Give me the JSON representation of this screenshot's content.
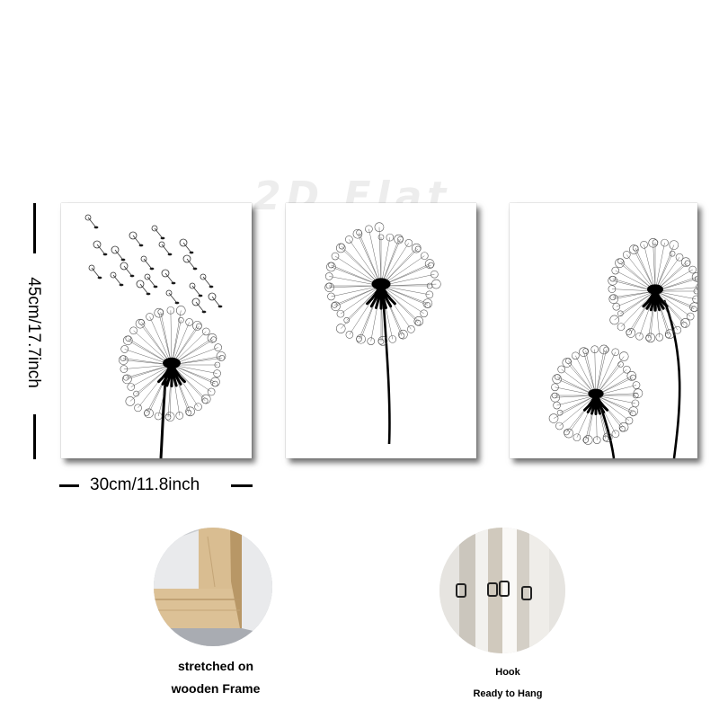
{
  "watermark": "2D Flat",
  "dimensions": {
    "height_label": "45cm/17.7inch",
    "width_label": "30cm/11.8inch"
  },
  "panels": [
    {
      "subject": "dandelion with blowing seeds"
    },
    {
      "subject": "single dandelion"
    },
    {
      "subject": "two dandelions"
    }
  ],
  "details": {
    "frame": {
      "line1": "stretched on",
      "line2": "wooden Frame"
    },
    "hook": {
      "line1": "Hook",
      "line2": "Ready to Hang"
    }
  },
  "colors": {
    "ink": "#000000",
    "wood": "#d8b989",
    "shadow": "#555555"
  }
}
